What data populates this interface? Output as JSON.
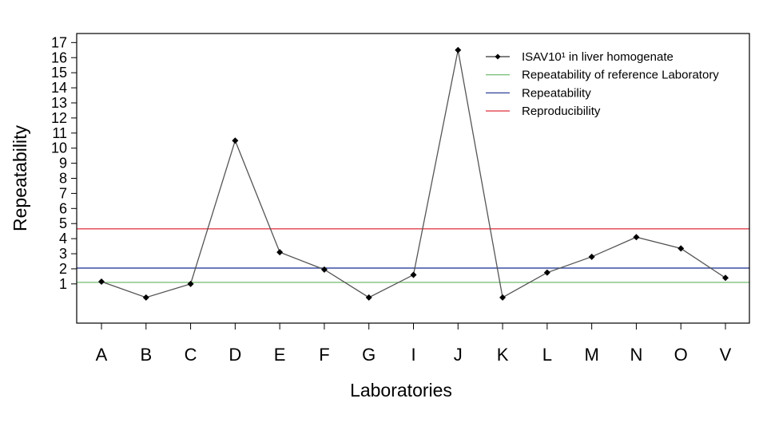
{
  "chart_data": {
    "type": "line",
    "title": "",
    "xlabel": "Laboratories",
    "ylabel": "Repeatability",
    "categories": [
      "A",
      "B",
      "C",
      "D",
      "E",
      "F",
      "G",
      "I",
      "J",
      "K",
      "L",
      "M",
      "N",
      "O",
      "V"
    ],
    "ylim": [
      -1.6,
      17.6
    ],
    "yticks": [
      1,
      2,
      3,
      4,
      5,
      6,
      7,
      8,
      9,
      10,
      11,
      12,
      13,
      14,
      15,
      16,
      17
    ],
    "grid": false,
    "legend_position": "top-right",
    "series": [
      {
        "name": "ISAV10¹ in liver homogenate",
        "color": "#000000",
        "line_color": "#555555",
        "marker": "diamond",
        "values": [
          1.15,
          0.1,
          1.0,
          10.5,
          3.1,
          1.95,
          0.1,
          1.6,
          16.5,
          0.1,
          1.75,
          2.8,
          4.1,
          3.35,
          1.4
        ]
      }
    ],
    "reference_lines": [
      {
        "name": "Repeatability of reference Laboratory",
        "value": 1.1,
        "color": "#7ec27a"
      },
      {
        "name": "Repeatability",
        "value": 2.05,
        "color": "#3a4fa0"
      },
      {
        "name": "Reproducibility",
        "value": 4.65,
        "color": "#e0404c"
      }
    ]
  }
}
